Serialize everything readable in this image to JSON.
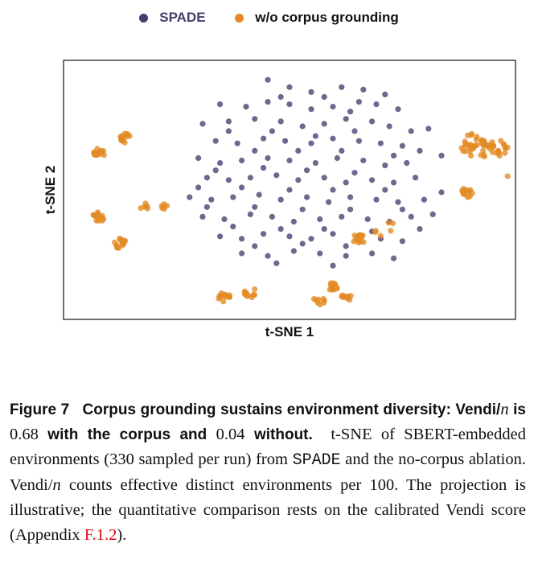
{
  "colors": {
    "spade": "#4a3b6e",
    "no_corpus": "#e38a22",
    "frame": "#111111"
  },
  "legend": {
    "spade": "SPADE",
    "no_corpus": "w/o corpus grounding"
  },
  "chart_data": {
    "type": "scatter",
    "xlabel": "t-SNE 1",
    "ylabel": "t-SNE 2",
    "xlim": [
      0,
      100
    ],
    "ylim": [
      0,
      100
    ],
    "series": [
      {
        "name": "SPADE",
        "color": "#4a3b6e",
        "points": [
          [
            45,
            95
          ],
          [
            50,
            92
          ],
          [
            55,
            90
          ],
          [
            62,
            92
          ],
          [
            67,
            91
          ],
          [
            72,
            89
          ],
          [
            34,
            85
          ],
          [
            40,
            84
          ],
          [
            45,
            86
          ],
          [
            50,
            85
          ],
          [
            55,
            83
          ],
          [
            60,
            84
          ],
          [
            66,
            86
          ],
          [
            70,
            85
          ],
          [
            75,
            83
          ],
          [
            30,
            77
          ],
          [
            36,
            78
          ],
          [
            42,
            79
          ],
          [
            48,
            78
          ],
          [
            53,
            76
          ],
          [
            58,
            77
          ],
          [
            63,
            79
          ],
          [
            69,
            78
          ],
          [
            73,
            76
          ],
          [
            78,
            74
          ],
          [
            82,
            75
          ],
          [
            33,
            70
          ],
          [
            38,
            69
          ],
          [
            44,
            71
          ],
          [
            49,
            70
          ],
          [
            55,
            69
          ],
          [
            60,
            71
          ],
          [
            66,
            70
          ],
          [
            71,
            69
          ],
          [
            76,
            68
          ],
          [
            80,
            66
          ],
          [
            85,
            64
          ],
          [
            29,
            63
          ],
          [
            34,
            61
          ],
          [
            39,
            62
          ],
          [
            45,
            63
          ],
          [
            50,
            62
          ],
          [
            56,
            61
          ],
          [
            61,
            63
          ],
          [
            67,
            62
          ],
          [
            72,
            60
          ],
          [
            77,
            61
          ],
          [
            31,
            55
          ],
          [
            36,
            54
          ],
          [
            41,
            55
          ],
          [
            47,
            56
          ],
          [
            52,
            54
          ],
          [
            58,
            55
          ],
          [
            63,
            53
          ],
          [
            69,
            54
          ],
          [
            74,
            53
          ],
          [
            79,
            55
          ],
          [
            27,
            47
          ],
          [
            32,
            46
          ],
          [
            37,
            47
          ],
          [
            43,
            48
          ],
          [
            48,
            46
          ],
          [
            54,
            47
          ],
          [
            59,
            45
          ],
          [
            64,
            47
          ],
          [
            70,
            46
          ],
          [
            75,
            45
          ],
          [
            81,
            46
          ],
          [
            85,
            49
          ],
          [
            30,
            39
          ],
          [
            35,
            38
          ],
          [
            41,
            40
          ],
          [
            46,
            39
          ],
          [
            51,
            37
          ],
          [
            57,
            38
          ],
          [
            62,
            39
          ],
          [
            68,
            38
          ],
          [
            73,
            37
          ],
          [
            78,
            39
          ],
          [
            83,
            40
          ],
          [
            34,
            31
          ],
          [
            39,
            30
          ],
          [
            44,
            32
          ],
          [
            50,
            31
          ],
          [
            55,
            30
          ],
          [
            60,
            32
          ],
          [
            66,
            31
          ],
          [
            71,
            30
          ],
          [
            76,
            29
          ],
          [
            39,
            24
          ],
          [
            45,
            23
          ],
          [
            51,
            25
          ],
          [
            57,
            24
          ],
          [
            63,
            23
          ],
          [
            69,
            24
          ],
          [
            74,
            22
          ],
          [
            48,
            88
          ],
          [
            58,
            88
          ],
          [
            64,
            82
          ],
          [
            36,
            74
          ],
          [
            46,
            74
          ],
          [
            56,
            72
          ],
          [
            65,
            74
          ],
          [
            42,
            66
          ],
          [
            52,
            66
          ],
          [
            62,
            66
          ],
          [
            74,
            64
          ],
          [
            33,
            58
          ],
          [
            44,
            59
          ],
          [
            54,
            58
          ],
          [
            65,
            57
          ],
          [
            29,
            51
          ],
          [
            39,
            51
          ],
          [
            50,
            50
          ],
          [
            60,
            50
          ],
          [
            72,
            50
          ],
          [
            31,
            43
          ],
          [
            42,
            43
          ],
          [
            53,
            42
          ],
          [
            64,
            42
          ],
          [
            76,
            42
          ],
          [
            37,
            35
          ],
          [
            48,
            34
          ],
          [
            58,
            34
          ],
          [
            69,
            33
          ],
          [
            80,
            34
          ],
          [
            42,
            27
          ],
          [
            53,
            28
          ],
          [
            63,
            27
          ],
          [
            47,
            20
          ],
          [
            60,
            19
          ]
        ]
      },
      {
        "name": "w/o corpus grounding",
        "color": "#e38a22",
        "clusters": [
          {
            "center": [
              6,
              65
            ],
            "n": 14
          },
          {
            "center": [
              12,
              71
            ],
            "n": 14
          },
          {
            "center": [
              6,
              39
            ],
            "n": 14
          },
          {
            "center": [
              11,
              28
            ],
            "n": 14
          },
          {
            "center": [
              17,
              43
            ],
            "n": 6
          },
          {
            "center": [
              21,
              43
            ],
            "n": 6
          },
          {
            "center": [
              35,
              6
            ],
            "n": 12
          },
          {
            "center": [
              41,
              8
            ],
            "n": 10
          },
          {
            "center": [
              57,
              5
            ],
            "n": 8
          },
          {
            "center": [
              60,
              10
            ],
            "n": 12
          },
          {
            "center": [
              63,
              6
            ],
            "n": 10
          },
          {
            "center": [
              66,
              30
            ],
            "n": 12
          },
          {
            "center": [
              70,
              32
            ],
            "n": 3
          },
          {
            "center": [
              73,
              35
            ],
            "n": 3
          },
          {
            "center": [
              91,
              49
            ],
            "n": 12
          },
          {
            "center": [
              93,
              68
            ],
            "n": 40,
            "spread": 3.5
          },
          {
            "center": [
              98,
              67
            ],
            "n": 20,
            "spread": 2.5
          },
          {
            "center": [
              99,
              56
            ],
            "n": 1
          }
        ]
      }
    ]
  },
  "caption": {
    "label": "Figure 7",
    "title": "Corpus grounding sustains environment diversity:",
    "p1a": "Vendi/",
    "p1n": "n",
    "p1b": " is ",
    "v1": "0.68",
    "p1c": " with the corpus and ",
    "v2": "0.04",
    "p1d": " without.",
    "body1": "t-SNE of SBERT-embedded environments (330 sampled per run) from ",
    "spade": "SPADE",
    "body2": " and the no-corpus ablation. Vendi/",
    "body_n": "n",
    "body3": " counts effective distinct environments per 100. The projection is illustrative; the quantitative comparison rests on the calibrated Vendi score (Appendix ",
    "link": "F.1.2",
    "body4": ")."
  }
}
